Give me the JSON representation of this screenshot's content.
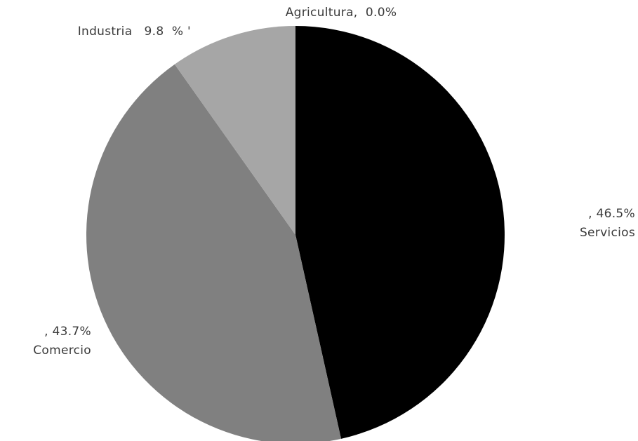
{
  "chart_data": {
    "type": "pie",
    "categories": [
      "Servicios",
      "Comercio",
      "Industria",
      "Agricultura"
    ],
    "values": [
      46.5,
      43.7,
      9.8,
      0.0
    ],
    "unit": "%",
    "colors": [
      "#000000",
      "#808080",
      "#a6a6a6",
      "#d9d9d9"
    ],
    "labels": [
      {
        "category": "Servicios",
        "line1": ", 46.5%",
        "line2": "Servicios"
      },
      {
        "category": "Comercio",
        "line1": ", 43.7%",
        "line2": "Comercio"
      },
      {
        "category": "Industria",
        "line1": "Industria   9.8  % '",
        "line2": ""
      },
      {
        "category": "Agricultura",
        "line1": "Agricultura,  0.0%",
        "line2": ""
      }
    ]
  }
}
